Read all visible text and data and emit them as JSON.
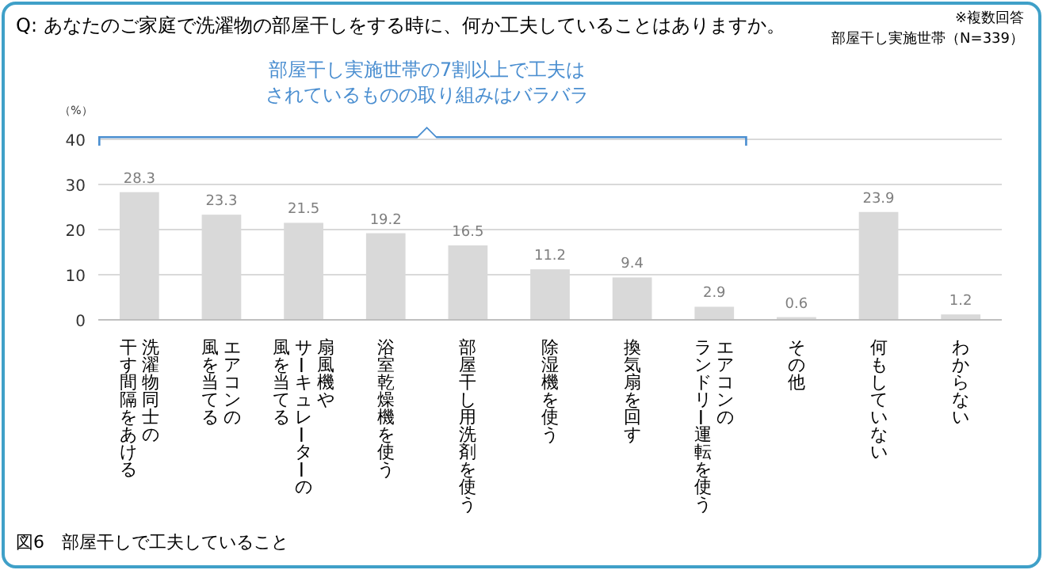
{
  "chart_data": {
    "type": "bar",
    "title": "Q: あなたのご家庭で洗濯物の部屋干しをする時に、何か工夫していることはありますか。",
    "ylabel": "（%）",
    "annotations": [
      "※複数回答",
      "部屋干し実施世帯（N=339）",
      "部屋干し実施世帯の7割以上で工夫はされているものの取り組みはバラバラ",
      "図6　部屋干しで工夫していること"
    ],
    "categories": [
      "洗濯物同士の干す間隔をあける",
      "エアコンの風を当てる",
      "扇風機やサーキュレーターの風を当てる",
      "浴室乾燥機を使う",
      "部屋干し用洗剤を使う",
      "除湿機を使う",
      "換気扇を回す",
      "エアコンのランドリー運転を使う",
      "その他",
      "何もしていない",
      "わからない"
    ],
    "values": [
      28.3,
      23.3,
      21.5,
      19.2,
      16.5,
      11.2,
      9.4,
      2.9,
      0.6,
      23.9,
      1.2
    ],
    "color": "#d9d9d9",
    "ylim": [
      0,
      40
    ],
    "yticks": [
      0,
      10,
      20,
      30,
      40
    ],
    "grid": "y",
    "data_labels": true
  }
}
